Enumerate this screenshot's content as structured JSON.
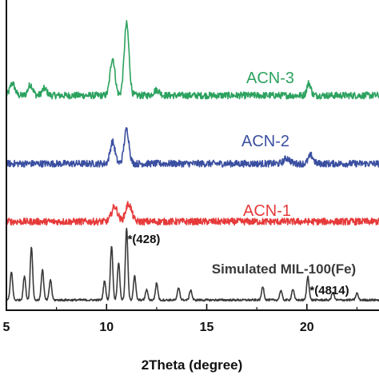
{
  "chart_data": {
    "type": "line",
    "xlabel": "2Theta (degree)",
    "ylabel": "",
    "xlim": [
      5,
      23.6
    ],
    "xticks": [
      5,
      10,
      15,
      20
    ],
    "grid": false,
    "legend": "none",
    "series": [
      {
        "name": "ACN-3",
        "color": "#2ca25f",
        "offset": 3.0,
        "baseline": 0.0,
        "noise": 0.05,
        "peaks": [
          {
            "x": 5.3,
            "h": 0.18,
            "w": 0.12
          },
          {
            "x": 6.2,
            "h": 0.16,
            "w": 0.12
          },
          {
            "x": 6.9,
            "h": 0.1,
            "w": 0.12
          },
          {
            "x": 10.3,
            "h": 0.55,
            "w": 0.12
          },
          {
            "x": 11.0,
            "h": 1.05,
            "w": 0.12
          },
          {
            "x": 12.5,
            "h": 0.08,
            "w": 0.15
          },
          {
            "x": 20.1,
            "h": 0.18,
            "w": 0.1
          }
        ]
      },
      {
        "name": "ACN-2",
        "color": "#3a4fa0",
        "offset": 2.0,
        "baseline": 0.0,
        "noise": 0.05,
        "peaks": [
          {
            "x": 10.3,
            "h": 0.32,
            "w": 0.12
          },
          {
            "x": 11.0,
            "h": 0.5,
            "w": 0.12
          },
          {
            "x": 19.0,
            "h": 0.08,
            "w": 0.15
          },
          {
            "x": 20.2,
            "h": 0.12,
            "w": 0.12
          }
        ]
      },
      {
        "name": "ACN-1",
        "color": "#e63a3a",
        "offset": 1.15,
        "baseline": 0.0,
        "noise": 0.05,
        "peaks": [
          {
            "x": 10.4,
            "h": 0.22,
            "w": 0.15
          },
          {
            "x": 11.1,
            "h": 0.26,
            "w": 0.15
          }
        ]
      },
      {
        "name": "Simulated MIL-100(Fe)",
        "color": "#3a3a3a",
        "offset": 0.0,
        "baseline": 0.0,
        "noise": 0.015,
        "peaks": [
          {
            "x": 5.25,
            "h": 0.42,
            "w": 0.06
          },
          {
            "x": 5.9,
            "h": 0.35,
            "w": 0.06
          },
          {
            "x": 6.25,
            "h": 0.78,
            "w": 0.06
          },
          {
            "x": 6.8,
            "h": 0.45,
            "w": 0.06
          },
          {
            "x": 7.2,
            "h": 0.3,
            "w": 0.06
          },
          {
            "x": 9.9,
            "h": 0.28,
            "w": 0.06
          },
          {
            "x": 10.25,
            "h": 0.8,
            "w": 0.06
          },
          {
            "x": 10.6,
            "h": 0.55,
            "w": 0.06
          },
          {
            "x": 11.0,
            "h": 1.05,
            "w": 0.06
          },
          {
            "x": 11.4,
            "h": 0.35,
            "w": 0.06
          },
          {
            "x": 12.0,
            "h": 0.15,
            "w": 0.06
          },
          {
            "x": 12.5,
            "h": 0.25,
            "w": 0.06
          },
          {
            "x": 13.6,
            "h": 0.18,
            "w": 0.06
          },
          {
            "x": 14.2,
            "h": 0.15,
            "w": 0.06
          },
          {
            "x": 17.8,
            "h": 0.2,
            "w": 0.06
          },
          {
            "x": 18.7,
            "h": 0.14,
            "w": 0.06
          },
          {
            "x": 19.3,
            "h": 0.16,
            "w": 0.06
          },
          {
            "x": 20.05,
            "h": 0.35,
            "w": 0.06
          },
          {
            "x": 21.3,
            "h": 0.12,
            "w": 0.06
          },
          {
            "x": 22.5,
            "h": 0.1,
            "w": 0.06
          }
        ]
      }
    ],
    "annotations": [
      {
        "text": "*(428)",
        "x": 11.0,
        "series": 3
      },
      {
        "text": "*(4814)",
        "x": 20.05,
        "series": 3
      }
    ]
  }
}
